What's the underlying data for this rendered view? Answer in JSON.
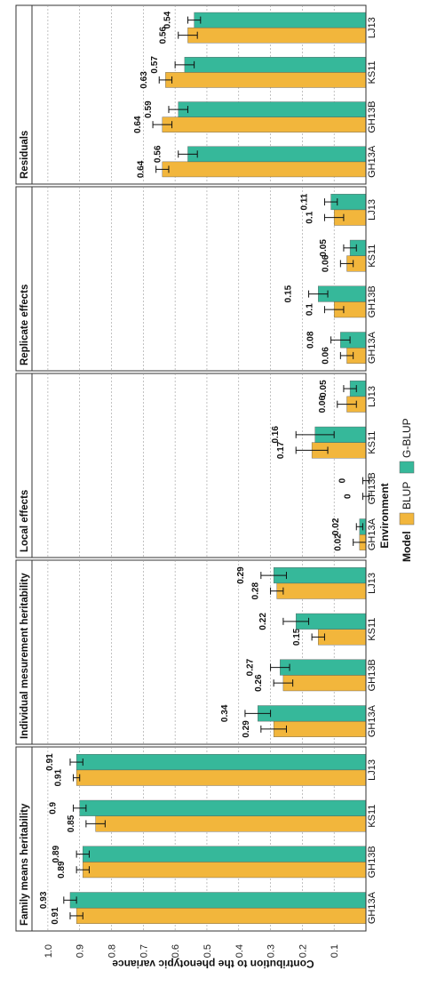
{
  "chart_data": {
    "type": "bar",
    "orientation": "rotated-90",
    "ylabel": "Contribution to the phenotypic variance",
    "xlabel": "Environment",
    "ylim": [
      0,
      1.05
    ],
    "yticks": [
      0.1,
      0.2,
      0.3,
      0.4,
      0.5,
      0.6,
      0.7,
      0.8,
      0.9,
      1.0
    ],
    "ytick_labels": [
      "0.1",
      "0.2",
      "0.3",
      "0.4",
      "0.5",
      "0.6",
      "0.7",
      "0.8",
      "0.9",
      "1.0"
    ],
    "grid": true,
    "legend": {
      "title": "Model",
      "position": "top",
      "entries": [
        {
          "label": "BLUP",
          "color": "#F2B63C"
        },
        {
          "label": "G-BLUP",
          "color": "#36B89A"
        }
      ]
    },
    "categories": [
      "GH13A",
      "GH13B",
      "KS11",
      "LJ13"
    ],
    "panels": [
      {
        "title": "Family means heritability",
        "series": [
          {
            "name": "BLUP",
            "values": [
              0.91,
              0.89,
              0.85,
              0.91
            ],
            "errors": [
              0.02,
              0.02,
              0.03,
              0.01
            ]
          },
          {
            "name": "G-BLUP",
            "values": [
              0.93,
              0.89,
              0.9,
              0.91
            ],
            "errors": [
              0.02,
              0.02,
              0.02,
              0.02
            ]
          }
        ],
        "value_labels": [
          [
            "0.91",
            "0.93"
          ],
          [
            "0.89",
            "0.89"
          ],
          [
            "0.85",
            "0.9"
          ],
          [
            "0.91",
            "0.91"
          ]
        ]
      },
      {
        "title": "Individual mesurement heritability",
        "series": [
          {
            "name": "BLUP",
            "values": [
              0.29,
              0.26,
              0.15,
              0.28
            ],
            "errors": [
              0.04,
              0.03,
              0.02,
              0.02
            ]
          },
          {
            "name": "G-BLUP",
            "values": [
              0.34,
              0.27,
              0.22,
              0.29
            ],
            "errors": [
              0.04,
              0.03,
              0.04,
              0.04
            ]
          }
        ],
        "value_labels": [
          [
            "0.29",
            "0.34"
          ],
          [
            "0.26",
            "0.27"
          ],
          [
            "0.15",
            "0.22"
          ],
          [
            "0.28",
            "0.29"
          ]
        ]
      },
      {
        "title": "Local effects",
        "series": [
          {
            "name": "BLUP",
            "values": [
              0.02,
              0.0,
              0.17,
              0.06
            ],
            "errors": [
              0.02,
              0.01,
              0.05,
              0.03
            ]
          },
          {
            "name": "G-BLUP",
            "values": [
              0.02,
              0.0,
              0.16,
              0.05
            ],
            "errors": [
              0.01,
              0.01,
              0.06,
              0.02
            ]
          }
        ],
        "value_labels": [
          [
            "0.02",
            "0.02"
          ],
          [
            "0",
            "0"
          ],
          [
            "0.17",
            "0.16"
          ],
          [
            "0.06",
            "0.05"
          ]
        ]
      },
      {
        "title": "Replicate effects",
        "series": [
          {
            "name": "BLUP",
            "values": [
              0.06,
              0.1,
              0.06,
              0.1
            ],
            "errors": [
              0.02,
              0.03,
              0.02,
              0.03
            ]
          },
          {
            "name": "G-BLUP",
            "values": [
              0.08,
              0.15,
              0.05,
              0.11
            ],
            "errors": [
              0.03,
              0.03,
              0.02,
              0.02
            ]
          }
        ],
        "value_labels": [
          [
            "0.06",
            "0.08"
          ],
          [
            "0.1",
            "0.15"
          ],
          [
            "0.06",
            "0.05"
          ],
          [
            "0.1",
            "0.11"
          ]
        ]
      },
      {
        "title": "Residuals",
        "series": [
          {
            "name": "BLUP",
            "values": [
              0.64,
              0.64,
              0.63,
              0.56
            ],
            "errors": [
              0.02,
              0.03,
              0.02,
              0.03
            ]
          },
          {
            "name": "G-BLUP",
            "values": [
              0.56,
              0.59,
              0.57,
              0.54
            ],
            "errors": [
              0.03,
              0.03,
              0.03,
              0.02
            ]
          }
        ],
        "value_labels": [
          [
            "0.64",
            "0.56"
          ],
          [
            "0.64",
            "0.59"
          ],
          [
            "0.63",
            "0.57"
          ],
          [
            "0.56",
            "0.54"
          ]
        ]
      }
    ]
  }
}
